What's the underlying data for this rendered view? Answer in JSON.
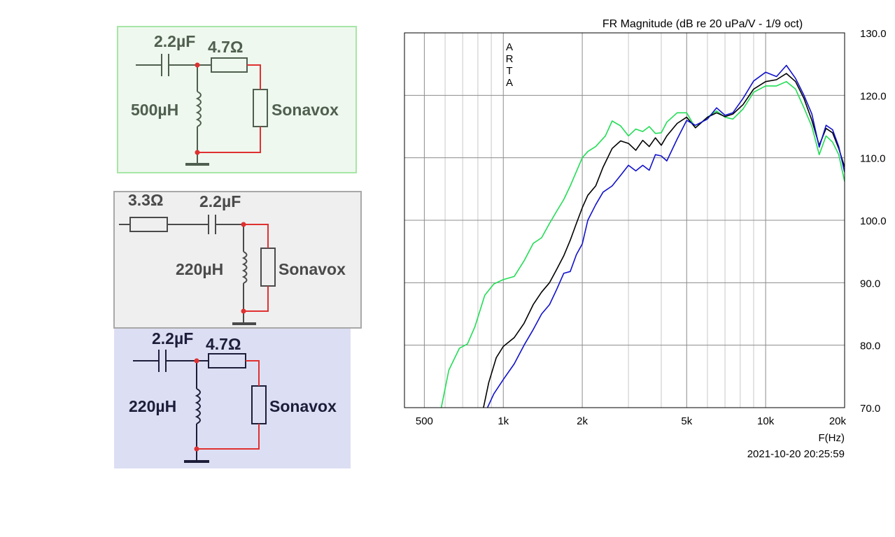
{
  "circuits": [
    {
      "capacitor": "2.2µF",
      "resistor": "4.7Ω",
      "inductor": "500µH",
      "driver": "Sonavox",
      "panel_color": "#eef8ee",
      "border_color": "#a6e6a6",
      "text_color": "#4f5f4f"
    },
    {
      "series_resistor": "3.3Ω",
      "capacitor": "2.2µF",
      "inductor": "220µH",
      "driver": "Sonavox",
      "panel_color": "#efefef",
      "border_color": "#a8a8a8",
      "text_color": "#4a4a4a"
    },
    {
      "capacitor": "2.2µF",
      "resistor": "4.7Ω",
      "inductor": "220µH",
      "driver": "Sonavox",
      "panel_color": "#dcdff3",
      "border_color": "#dcdff3",
      "text_color": "#1d1d3a"
    }
  ],
  "chart_data": {
    "type": "line",
    "title": "FR Magnitude (dB re 20 uPa/V - 1/9 oct)",
    "watermark": [
      "A",
      "R",
      "T",
      "A"
    ],
    "xlabel": "F(Hz)",
    "ylabel": "",
    "x_scale": "log",
    "xlim": [
      420,
      20000
    ],
    "ylim": [
      70,
      130
    ],
    "x_ticks": [
      500,
      1000,
      2000,
      5000,
      10000,
      20000
    ],
    "x_tick_labels": [
      "500",
      "1k",
      "2k",
      "5k",
      "10k",
      "20k"
    ],
    "y_ticks": [
      70,
      80,
      90,
      100,
      110,
      120,
      130
    ],
    "y_tick_labels": [
      "70.0",
      "80.0",
      "90.0",
      "100.0",
      "110.0",
      "120.0",
      "130.0"
    ],
    "grid": true,
    "timestamp": "2021-10-20  20:25:59",
    "series": [
      {
        "color": "#22dd55",
        "points": [
          [
            580,
            70
          ],
          [
            620,
            76
          ],
          [
            680,
            79.5
          ],
          [
            730,
            80.2
          ],
          [
            780,
            83
          ],
          [
            850,
            88
          ],
          [
            920,
            89.8
          ],
          [
            1000,
            90.5
          ],
          [
            1100,
            91
          ],
          [
            1200,
            93.5
          ],
          [
            1300,
            96.3
          ],
          [
            1400,
            97.2
          ],
          [
            1500,
            99.5
          ],
          [
            1600,
            101.5
          ],
          [
            1700,
            103.3
          ],
          [
            1800,
            105.5
          ],
          [
            1900,
            107.8
          ],
          [
            2000,
            110
          ],
          [
            2100,
            111
          ],
          [
            2250,
            111.8
          ],
          [
            2450,
            113.5
          ],
          [
            2600,
            115.9
          ],
          [
            2800,
            115.1
          ],
          [
            3000,
            113.5
          ],
          [
            3200,
            114.6
          ],
          [
            3400,
            114.2
          ],
          [
            3600,
            115
          ],
          [
            3800,
            113.9
          ],
          [
            4000,
            114
          ],
          [
            4200,
            115.7
          ],
          [
            4600,
            117.2
          ],
          [
            5000,
            117.2
          ],
          [
            5400,
            114.8
          ],
          [
            6000,
            116.5
          ],
          [
            6500,
            117.5
          ],
          [
            7000,
            116.5
          ],
          [
            7500,
            116.2
          ],
          [
            8200,
            117.8
          ],
          [
            9000,
            120.5
          ],
          [
            10000,
            121.5
          ],
          [
            11000,
            121.5
          ],
          [
            12000,
            122.2
          ],
          [
            13000,
            121
          ],
          [
            14000,
            118
          ],
          [
            15000,
            115
          ],
          [
            16000,
            110.5
          ],
          [
            17000,
            113.5
          ],
          [
            18000,
            112.5
          ],
          [
            19000,
            110.5
          ],
          [
            20000,
            106.2
          ]
        ]
      },
      {
        "color": "#000000",
        "points": [
          [
            840,
            70
          ],
          [
            880,
            74
          ],
          [
            940,
            78
          ],
          [
            1000,
            79.8
          ],
          [
            1100,
            81.2
          ],
          [
            1200,
            83.5
          ],
          [
            1300,
            86.5
          ],
          [
            1400,
            88.5
          ],
          [
            1500,
            90
          ],
          [
            1600,
            92.2
          ],
          [
            1700,
            94.3
          ],
          [
            1800,
            96.8
          ],
          [
            1900,
            99.5
          ],
          [
            2000,
            102
          ],
          [
            2100,
            104
          ],
          [
            2250,
            105.5
          ],
          [
            2400,
            108.5
          ],
          [
            2600,
            111.5
          ],
          [
            2800,
            112.7
          ],
          [
            3000,
            112.3
          ],
          [
            3200,
            111.2
          ],
          [
            3400,
            112.8
          ],
          [
            3600,
            111.8
          ],
          [
            3800,
            113.2
          ],
          [
            4000,
            112
          ],
          [
            4200,
            113.5
          ],
          [
            4600,
            115.5
          ],
          [
            5000,
            116.5
          ],
          [
            5400,
            114.8
          ],
          [
            6000,
            116.5
          ],
          [
            6500,
            117.2
          ],
          [
            7000,
            116.6
          ],
          [
            7500,
            117
          ],
          [
            8200,
            118.5
          ],
          [
            9000,
            121
          ],
          [
            10000,
            122.2
          ],
          [
            11000,
            122.5
          ],
          [
            12000,
            123.5
          ],
          [
            13000,
            122.2
          ],
          [
            14000,
            119.5
          ],
          [
            15000,
            116
          ],
          [
            16000,
            112
          ],
          [
            17000,
            114.7
          ],
          [
            18000,
            114
          ],
          [
            19000,
            111.5
          ],
          [
            20000,
            108.5
          ]
        ]
      },
      {
        "color": "#1111cc",
        "points": [
          [
            870,
            70
          ],
          [
            920,
            72.2
          ],
          [
            1000,
            74.5
          ],
          [
            1100,
            77
          ],
          [
            1200,
            80
          ],
          [
            1300,
            82.5
          ],
          [
            1400,
            85
          ],
          [
            1500,
            86.5
          ],
          [
            1600,
            89
          ],
          [
            1700,
            91.5
          ],
          [
            1800,
            91.8
          ],
          [
            1900,
            94.5
          ],
          [
            2000,
            96.2
          ],
          [
            2100,
            100
          ],
          [
            2250,
            102.5
          ],
          [
            2400,
            104.5
          ],
          [
            2600,
            105.5
          ],
          [
            2800,
            107.2
          ],
          [
            3000,
            108.8
          ],
          [
            3200,
            107.9
          ],
          [
            3400,
            108.8
          ],
          [
            3600,
            108
          ],
          [
            3800,
            110.5
          ],
          [
            4000,
            110.3
          ],
          [
            4200,
            109.5
          ],
          [
            4600,
            113
          ],
          [
            5000,
            116
          ],
          [
            5400,
            115.2
          ],
          [
            6000,
            116.2
          ],
          [
            6500,
            118
          ],
          [
            7000,
            116.8
          ],
          [
            7500,
            117.2
          ],
          [
            8200,
            119.5
          ],
          [
            9000,
            122.3
          ],
          [
            10000,
            123.7
          ],
          [
            11000,
            123
          ],
          [
            12000,
            124.8
          ],
          [
            13000,
            122.7
          ],
          [
            14000,
            120
          ],
          [
            15000,
            117
          ],
          [
            16000,
            111.7
          ],
          [
            17000,
            115.2
          ],
          [
            18000,
            114.5
          ],
          [
            19000,
            111.8
          ],
          [
            20000,
            107.7
          ]
        ]
      }
    ]
  }
}
